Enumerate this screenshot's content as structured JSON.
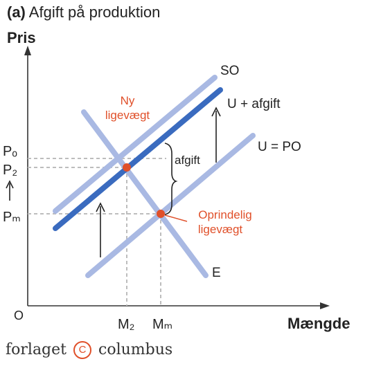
{
  "title": {
    "prefix": "(a)",
    "text": "Afgift på produktion"
  },
  "axes": {
    "y_label": "Pris",
    "x_label": "Mængde",
    "origin": "O",
    "y_ticks": {
      "po": "Pₒ",
      "p2": "P₂",
      "pm": "Pₘ"
    },
    "x_ticks": {
      "m2": "M₂",
      "mm": "Mₘ"
    }
  },
  "curves": {
    "so": "SO",
    "u_afgift": "U + afgift",
    "u_po": "U = PO",
    "e": "E"
  },
  "annotations": {
    "afgift": "afgift",
    "ny_line1": "Ny",
    "ny_line2": "ligevægt",
    "opr_line1": "Oprindelig",
    "opr_line2": "ligevægt"
  },
  "colors": {
    "light_curve": "#a9b9e3",
    "dark_curve": "#3a6bbf",
    "equilibrium": "#e0502a",
    "axis": "#333333",
    "guide": "#bdbdbd"
  },
  "footer": {
    "left": "forlaget",
    "symbol": "C",
    "right": "columbus"
  }
}
